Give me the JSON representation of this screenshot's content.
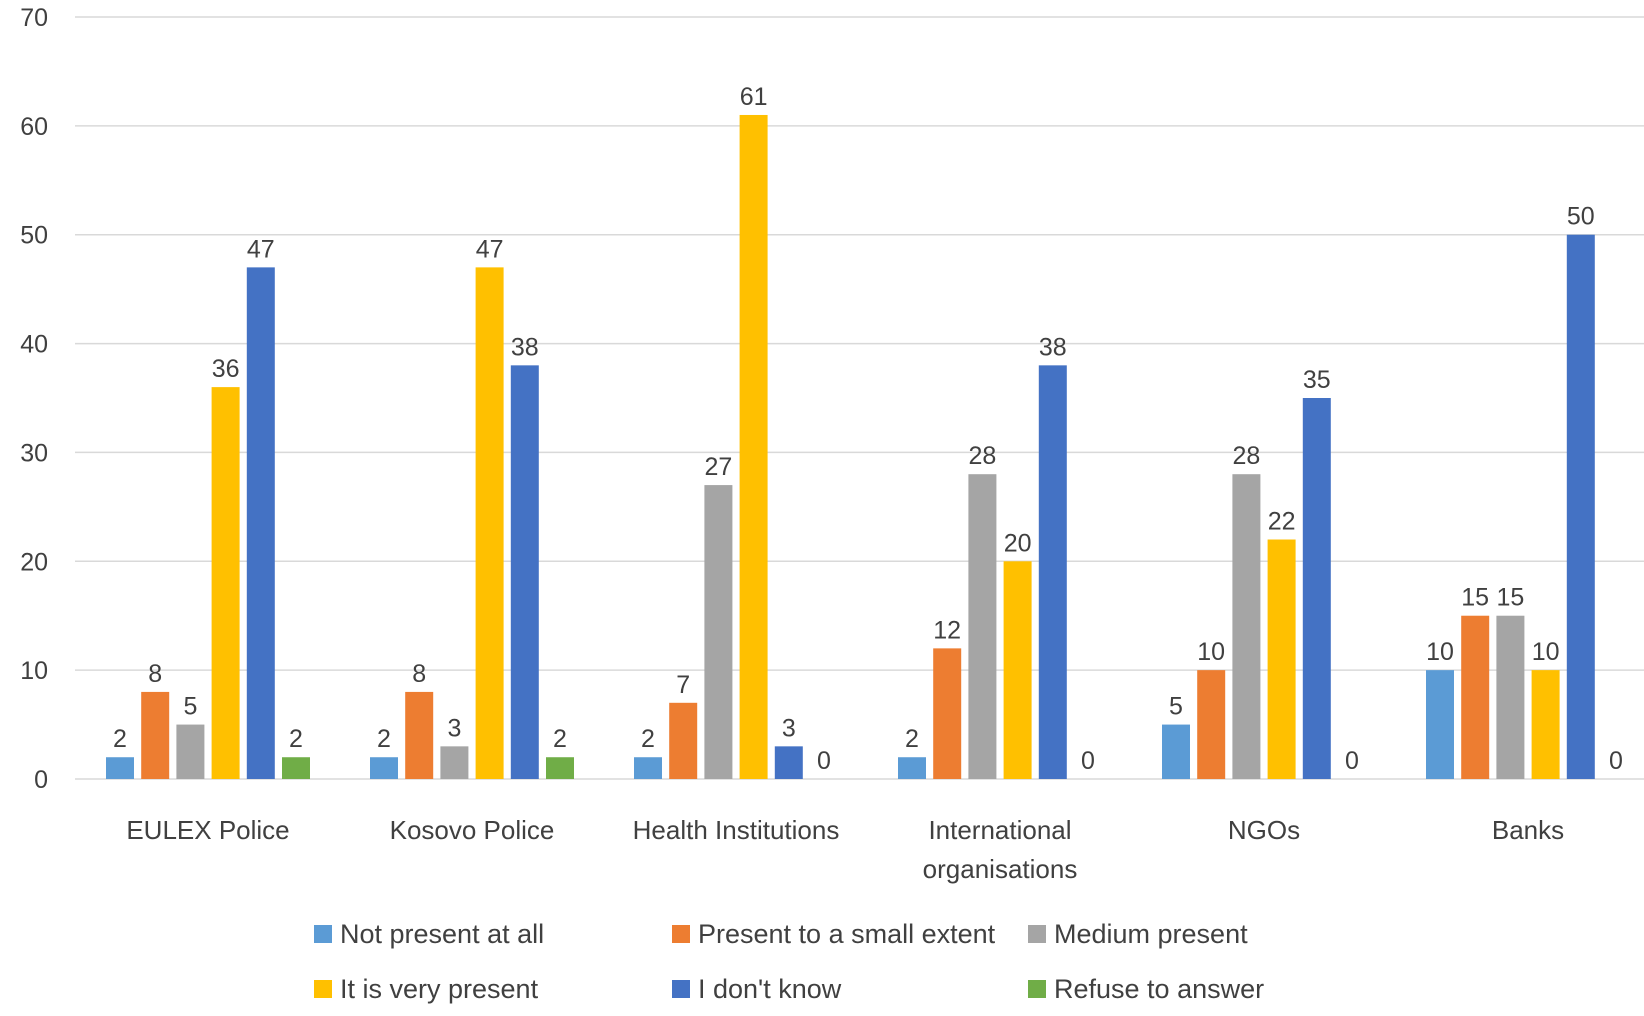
{
  "chart_data": {
    "type": "bar",
    "title": "",
    "xlabel": "",
    "ylabel": "",
    "ylim": [
      0,
      70
    ],
    "yticks": [
      0,
      10,
      20,
      30,
      40,
      50,
      60,
      70
    ],
    "grid": true,
    "legend_position": "bottom",
    "categories": [
      [
        "EULEX Police"
      ],
      [
        "Kosovo Police"
      ],
      [
        "Health Institutions"
      ],
      [
        "International",
        "organisations"
      ],
      [
        "NGOs"
      ],
      [
        "Banks"
      ]
    ],
    "series": [
      {
        "name": "Not present at all",
        "color": "#5b9bd5",
        "values": [
          2,
          2,
          2,
          2,
          5,
          10
        ]
      },
      {
        "name": "Present to a small extent",
        "color": "#ed7d31",
        "values": [
          8,
          8,
          7,
          12,
          10,
          15
        ]
      },
      {
        "name": "Medium present",
        "color": "#a5a5a5",
        "values": [
          5,
          3,
          27,
          28,
          28,
          15
        ]
      },
      {
        "name": "It is very present",
        "color": "#ffc000",
        "values": [
          36,
          47,
          61,
          20,
          22,
          10
        ]
      },
      {
        "name": "I don't know",
        "color": "#4472c4",
        "values": [
          47,
          38,
          3,
          38,
          35,
          50
        ]
      },
      {
        "name": "Refuse to answer",
        "color": "#70ad47",
        "values": [
          2,
          2,
          0,
          0,
          0,
          0
        ]
      }
    ]
  }
}
